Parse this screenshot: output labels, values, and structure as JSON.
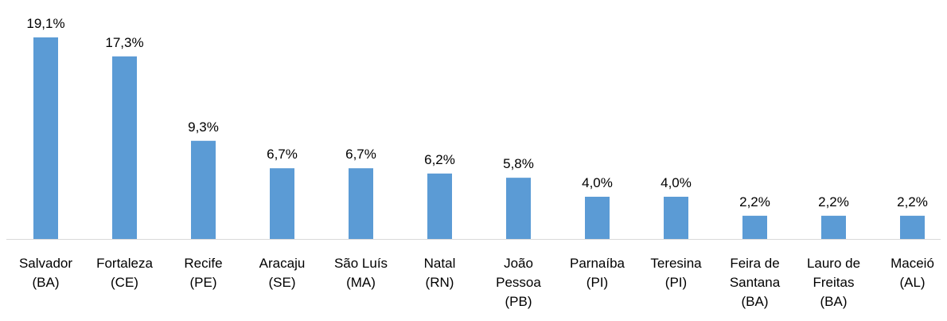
{
  "chart_data": {
    "type": "bar",
    "categories": [
      "Salvador\n(BA)",
      "Fortaleza\n(CE)",
      "Recife\n(PE)",
      "Aracaju\n(SE)",
      "São Luís\n(MA)",
      "Natal\n(RN)",
      "João\nPessoa\n(PB)",
      "Parnaíba\n(PI)",
      "Teresina\n(PI)",
      "Feira de\nSantana\n(BA)",
      "Lauro de\nFreitas\n(BA)",
      "Maceió\n(AL)"
    ],
    "values": [
      19.1,
      17.3,
      9.3,
      6.7,
      6.7,
      6.2,
      5.8,
      4.0,
      4.0,
      2.2,
      2.2,
      2.2
    ],
    "value_labels": [
      "19,1%",
      "17,3%",
      "9,3%",
      "6,7%",
      "6,7%",
      "6,2%",
      "5,8%",
      "4,0%",
      "4,0%",
      "2,2%",
      "2,2%",
      "2,2%"
    ],
    "color": "#5b9bd5",
    "ylim": [
      0,
      20
    ]
  }
}
